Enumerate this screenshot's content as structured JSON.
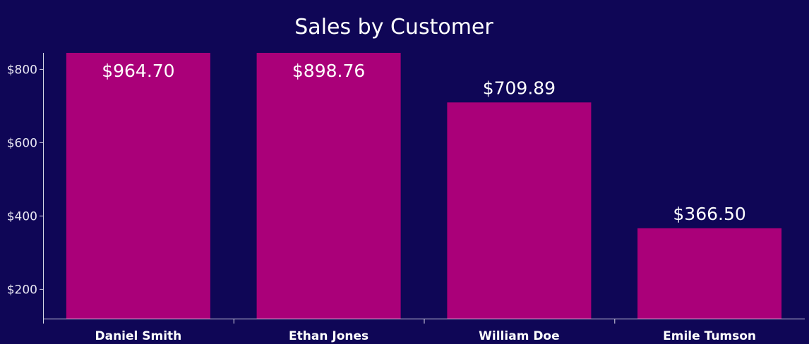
{
  "colors": {
    "background": "#0f0656",
    "bar": "#aa0079",
    "text": "#ffffff",
    "axis": "#d8d6e6"
  },
  "chart_data": {
    "type": "bar",
    "title": "Sales by Customer",
    "xlabel": "",
    "ylabel": "",
    "categories": [
      "Daniel Smith",
      "Ethan Jones",
      "William Doe",
      "Emile Tumson"
    ],
    "values": [
      964.7,
      898.76,
      709.89,
      366.5
    ],
    "value_labels": [
      "$964.70",
      "$898.76",
      "$709.89",
      "$366.50"
    ],
    "ylim": [
      120,
      845
    ],
    "yticks": [
      200,
      400,
      600,
      800
    ],
    "ytick_labels": [
      "$200",
      "$400",
      "$600",
      "$800"
    ],
    "grid": false,
    "legend": "none"
  }
}
